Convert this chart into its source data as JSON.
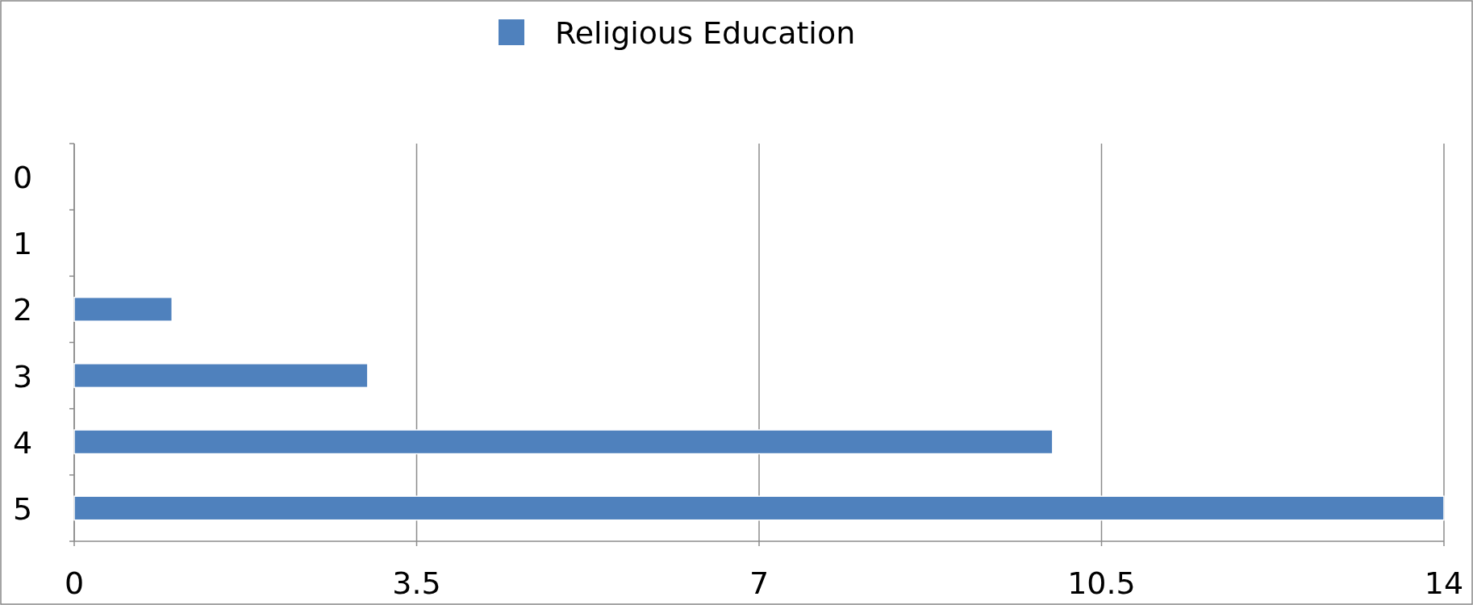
{
  "chart_data": {
    "type": "bar",
    "orientation": "horizontal",
    "categories": [
      "0",
      "1",
      "2",
      "3",
      "4",
      "5"
    ],
    "series": [
      {
        "name": "Religious Education",
        "color": "#4f81bd",
        "values": [
          0,
          0,
          1,
          3,
          10,
          14
        ]
      }
    ],
    "xlim": [
      0,
      14
    ],
    "xticks": [
      0,
      3.5,
      7,
      10.5,
      14
    ],
    "grid": "x",
    "legend": "top"
  }
}
